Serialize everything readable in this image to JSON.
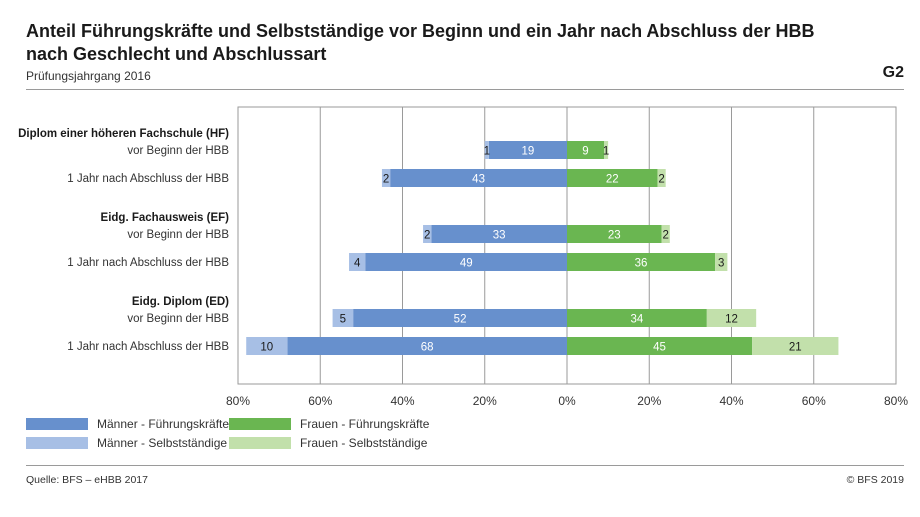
{
  "header": {
    "title": "Anteil Führungskräfte und Selbstständige vor Beginn und ein Jahr nach Abschluss der HBB nach Geschlecht und Abschlussart",
    "subtitle": "Prüfungsjahrgang 2016",
    "figure_id": "G2"
  },
  "footer": {
    "source": "Quelle: BFS – eHBB 2017",
    "copyright": "© BFS 2019"
  },
  "colors": {
    "men_leaders": "#6790cd",
    "men_self": "#a7bfe5",
    "women_leaders": "#6ab651",
    "women_self": "#c2e0ab",
    "grid": "#9a9a9a"
  },
  "chart_data": {
    "type": "bar",
    "orientation": "horizontal",
    "stacked": true,
    "diverging": true,
    "xlim": [
      -80,
      80
    ],
    "x_ticks": [
      "80%",
      "60%",
      "40%",
      "20%",
      "0%",
      "20%",
      "40%",
      "60%",
      "80%"
    ],
    "grid": true,
    "legend_position": "bottom-left",
    "groups": [
      {
        "label": "Diplom einer höheren Fachschule (HF)",
        "rows": [
          {
            "label": "vor Beginn der HBB",
            "men_leaders": 19,
            "men_self": 1,
            "women_leaders": 9,
            "women_self": 1
          },
          {
            "label": "1 Jahr nach Abschluss der HBB",
            "men_leaders": 43,
            "men_self": 2,
            "women_leaders": 22,
            "women_self": 2
          }
        ]
      },
      {
        "label": "Eidg. Fachausweis (EF)",
        "rows": [
          {
            "label": "vor Beginn der HBB",
            "men_leaders": 33,
            "men_self": 2,
            "women_leaders": 23,
            "women_self": 2
          },
          {
            "label": "1 Jahr nach Abschluss der HBB",
            "men_leaders": 49,
            "men_self": 4,
            "women_leaders": 36,
            "women_self": 3
          }
        ]
      },
      {
        "label": "Eidg. Diplom (ED)",
        "rows": [
          {
            "label": "vor Beginn der HBB",
            "men_leaders": 52,
            "men_self": 5,
            "women_leaders": 34,
            "women_self": 12
          },
          {
            "label": "1 Jahr nach Abschluss der HBB",
            "men_leaders": 68,
            "men_self": 10,
            "women_leaders": 45,
            "women_self": 21
          }
        ]
      }
    ],
    "series": [
      {
        "key": "men_leaders",
        "name": "Männer - Führungskräfte"
      },
      {
        "key": "men_self",
        "name": "Männer - Selbstständige"
      },
      {
        "key": "women_leaders",
        "name": "Frauen - Führungskräfte"
      },
      {
        "key": "women_self",
        "name": "Frauen - Selbstständige"
      }
    ]
  }
}
